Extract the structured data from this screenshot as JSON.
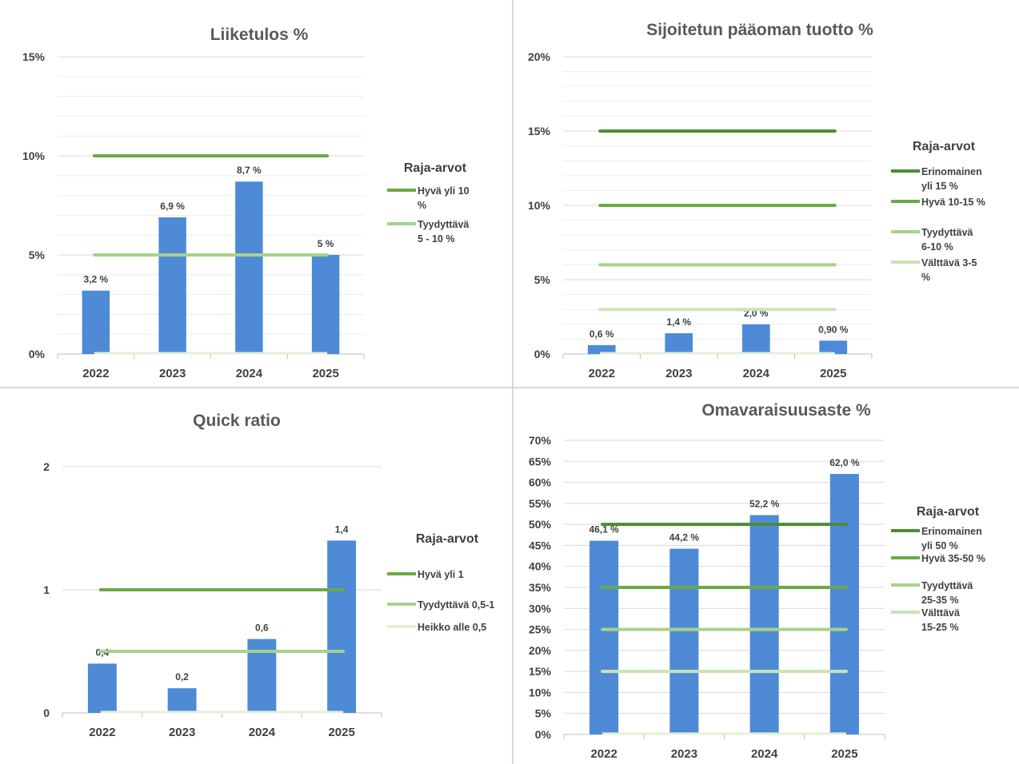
{
  "chart_data": [
    {
      "type": "bar",
      "title": "Liiketulos %",
      "categories": [
        "2022",
        "2023",
        "2024",
        "2025"
      ],
      "values": [
        3.2,
        6.9,
        8.7,
        5
      ],
      "value_labels": [
        "3,2 %",
        "6,9 %",
        "8,7 %",
        "5 %"
      ],
      "ylim": [
        0,
        15
      ],
      "yticks": [
        0,
        5,
        10,
        15
      ],
      "ytick_labels": [
        "0%",
        "5%",
        "10%",
        "15%"
      ],
      "minor_grid_step": 1,
      "bar_color": "#4e8ad6",
      "legend_title": "Raja-arvot",
      "legend_position": "right",
      "thresholds": [
        {
          "name": "Hyvä yli 10 %",
          "value": 10,
          "color": "#6aaa45"
        },
        {
          "name": "Tyydyttävä 5 - 10 %",
          "value": 5,
          "color": "#a6d28c"
        }
      ],
      "baseline_color": "#e2f0d9"
    },
    {
      "type": "bar",
      "title": "Sijoitetun pääoman tuotto %",
      "categories": [
        "2022",
        "2023",
        "2024",
        "2025"
      ],
      "values": [
        0.6,
        1.4,
        2.0,
        0.9
      ],
      "value_labels": [
        "0,6 %",
        "1,4 %",
        "2,0 %",
        "0,90 %"
      ],
      "ylim": [
        0,
        20
      ],
      "yticks": [
        0,
        5,
        10,
        15,
        20
      ],
      "ytick_labels": [
        "0%",
        "5%",
        "10%",
        "15%",
        "20%"
      ],
      "minor_grid_step": 1,
      "bar_color": "#4e8ad6",
      "legend_title": "Raja-arvot",
      "legend_position": "right",
      "thresholds": [
        {
          "name": "Erinomainen yli 15 %",
          "value": 15,
          "color": "#4f8a34"
        },
        {
          "name": "Hyvä 10-15 %",
          "value": 10,
          "color": "#6aaa45"
        },
        {
          "name": "Tyydyttävä 6-10 %",
          "value": 6,
          "color": "#a6d28c"
        },
        {
          "name": "Välttävä 3-5 %",
          "value": 3,
          "color": "#c9e4b6"
        }
      ],
      "baseline_color": "#e2f0d9"
    },
    {
      "type": "bar",
      "title": "Quick ratio",
      "categories": [
        "2022",
        "2023",
        "2024",
        "2025"
      ],
      "values": [
        0.4,
        0.2,
        0.6,
        1.4
      ],
      "value_labels": [
        "0,4",
        "0,2",
        "0,6",
        "1,4"
      ],
      "ylim": [
        0,
        2
      ],
      "yticks": [
        0,
        1,
        2
      ],
      "ytick_labels": [
        "0",
        "1",
        "2"
      ],
      "minor_grid_step": null,
      "bar_color": "#4e8ad6",
      "legend_title": "Raja-arvot",
      "legend_position": "right",
      "thresholds": [
        {
          "name": "Hyvä yli 1",
          "value": 1,
          "color": "#6aaa45"
        },
        {
          "name": "Tyydyttävä 0,5-1",
          "value": 0.5,
          "color": "#a6d28c"
        },
        {
          "name": "Heikko alle 0,5",
          "value": 0,
          "color": "#e2f0d9"
        }
      ],
      "baseline_color": "#e2f0d9"
    },
    {
      "type": "bar",
      "title": "Omavaraisuusaste %",
      "categories": [
        "2022",
        "2023",
        "2024",
        "2025"
      ],
      "values": [
        46.1,
        44.2,
        52.2,
        62.0
      ],
      "value_labels": [
        "46,1 %",
        "44,2 %",
        "52,2 %",
        "62,0 %"
      ],
      "ylim": [
        0,
        70
      ],
      "yticks": [
        0,
        5,
        10,
        15,
        20,
        25,
        30,
        35,
        40,
        45,
        50,
        55,
        60,
        65,
        70
      ],
      "ytick_labels": [
        "0%",
        "5%",
        "10%",
        "15%",
        "20%",
        "25%",
        "30%",
        "35%",
        "40%",
        "45%",
        "50%",
        "55%",
        "60%",
        "65%",
        "70%"
      ],
      "minor_grid_step": null,
      "bar_color": "#4e8ad6",
      "legend_title": "Raja-arvot",
      "legend_position": "right",
      "thresholds": [
        {
          "name": "Erinomainen yli 50 %",
          "value": 50,
          "color": "#4f8a34"
        },
        {
          "name": "Hyvä 35-50 %",
          "value": 35,
          "color": "#6aaa45"
        },
        {
          "name": "Tyydyttävä 25-35 %",
          "value": 25,
          "color": "#a6d28c"
        },
        {
          "name": "Välttävä 15-25 %",
          "value": 15,
          "color": "#c9e4b6"
        }
      ],
      "baseline_color": "#e2f0d9"
    }
  ]
}
